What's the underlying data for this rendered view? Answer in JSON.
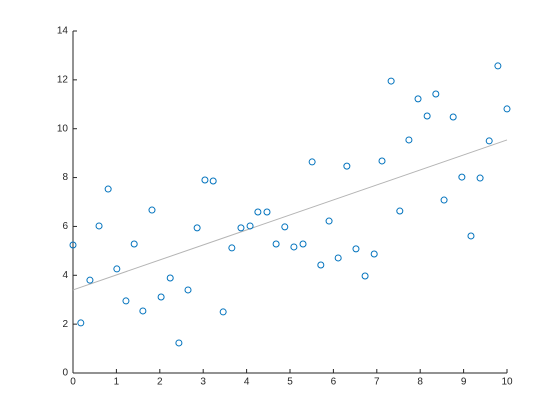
{
  "chart_data": {
    "type": "scatter",
    "x": [
      0,
      0.18,
      0.39,
      0.6,
      0.81,
      1.01,
      1.22,
      1.41,
      1.61,
      1.82,
      2.03,
      2.24,
      2.44,
      2.65,
      2.86,
      3.04,
      3.23,
      3.46,
      3.66,
      3.87,
      4.08,
      4.26,
      4.47,
      4.68,
      4.88,
      5.09,
      5.3,
      5.51,
      5.71,
      5.9,
      6.11,
      6.31,
      6.52,
      6.73,
      6.94,
      7.12,
      7.33,
      7.53,
      7.74,
      7.95,
      8.16,
      8.36,
      8.55,
      8.76,
      8.96,
      9.17,
      9.38,
      9.59,
      9.79,
      10
    ],
    "values": [
      5.24,
      2.05,
      3.8,
      6.02,
      7.53,
      4.26,
      2.95,
      5.28,
      2.54,
      6.67,
      3.11,
      3.89,
      1.23,
      3.4,
      5.94,
      7.9,
      7.86,
      2.5,
      5.12,
      5.94,
      6.02,
      6.59,
      6.59,
      5.28,
      5.98,
      5.16,
      5.28,
      8.64,
      4.42,
      6.22,
      4.71,
      8.47,
      5.08,
      3.97,
      4.87,
      8.68,
      11.95,
      6.63,
      9.54,
      11.22,
      10.52,
      11.42,
      7.08,
      10.48,
      8.02,
      5.61,
      7.98,
      9.5,
      12.57,
      10.81
    ],
    "color": "#0072bd",
    "fit_line": {
      "x": [
        0,
        10
      ],
      "values": [
        3.4,
        9.54
      ],
      "color": "#b4b4b4"
    },
    "xlim": [
      0,
      10
    ],
    "xticks": [
      0,
      1,
      2,
      3,
      4,
      5,
      6,
      7,
      8,
      9,
      10
    ],
    "ylim": [
      0,
      14
    ],
    "yticks": [
      0,
      2,
      4,
      6,
      8,
      10,
      12,
      14
    ]
  }
}
